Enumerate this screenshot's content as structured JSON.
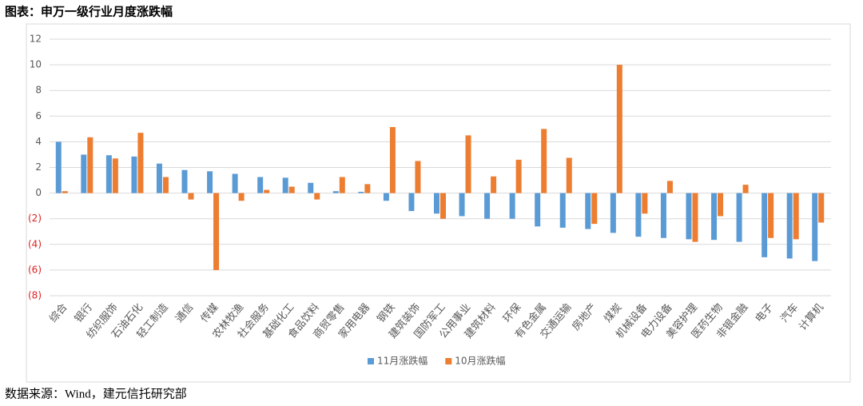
{
  "chart_data": {
    "type": "bar",
    "title": "图表：申万一级行业月度涨跌幅",
    "source": "数据来源：Wind，建元信托研究部",
    "categories": [
      "综合",
      "银行",
      "纺织服饰",
      "石油石化",
      "轻工制造",
      "通信",
      "传媒",
      "农林牧渔",
      "社会服务",
      "基础化工",
      "食品饮料",
      "商贸零售",
      "家用电器",
      "钢铁",
      "建筑装饰",
      "国防军工",
      "公用事业",
      "建筑材料",
      "环保",
      "有色金属",
      "交通运输",
      "房地产",
      "煤炭",
      "机械设备",
      "电力设备",
      "美容护理",
      "医药生物",
      "非银金融",
      "电子",
      "汽车",
      "计算机"
    ],
    "series": [
      {
        "name": "11月涨跌幅",
        "color": "#5b9bd5",
        "values": [
          4.0,
          3.0,
          2.95,
          2.85,
          2.3,
          1.8,
          1.7,
          1.5,
          1.25,
          1.2,
          0.8,
          0.15,
          0.1,
          -0.6,
          -1.4,
          -1.6,
          -1.8,
          -2.0,
          -2.0,
          -2.6,
          -2.7,
          -2.8,
          -3.1,
          -3.4,
          -3.5,
          -3.6,
          -3.65,
          -3.8,
          -5.0,
          -5.1,
          -5.3
        ]
      },
      {
        "name": "10月涨跌幅",
        "color": "#ed7d31",
        "values": [
          0.15,
          4.35,
          2.7,
          4.7,
          1.25,
          -0.5,
          -6.0,
          -0.6,
          0.25,
          0.5,
          -0.5,
          1.25,
          0.7,
          5.15,
          2.5,
          -2.0,
          4.5,
          1.3,
          2.6,
          5.0,
          2.75,
          -2.4,
          10.0,
          -1.6,
          0.95,
          -3.8,
          -1.8,
          0.65,
          -3.5,
          -3.6,
          -2.3
        ]
      }
    ],
    "ylim": [
      -8,
      12
    ],
    "yticks": [
      {
        "value": -8,
        "label": "(8)"
      },
      {
        "value": -6,
        "label": "(6)"
      },
      {
        "value": -4,
        "label": "(4)"
      },
      {
        "value": -2,
        "label": "(2)"
      },
      0,
      2,
      4,
      6,
      8,
      10,
      12
    ],
    "grid": true,
    "legend": "bottom"
  }
}
